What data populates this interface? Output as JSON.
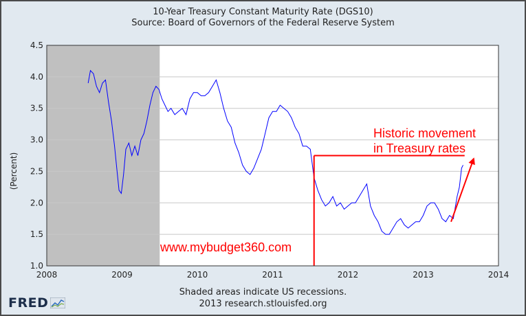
{
  "chart_data": {
    "type": "line",
    "title": "10-Year Treasury Constant Maturity Rate (DGS10)",
    "subtitle": "Source: Board of Governors of the Federal Reserve System",
    "xlabel": "",
    "ylabel": "(Percent)",
    "xlim": [
      2008,
      2014
    ],
    "ylim": [
      1.0,
      4.5
    ],
    "xticks": [
      "2008",
      "2009",
      "2010",
      "2011",
      "2012",
      "2013",
      "2014"
    ],
    "yticks": [
      "1.0",
      "1.5",
      "2.0",
      "2.5",
      "3.0",
      "3.5",
      "4.0",
      "4.5"
    ],
    "grid": true,
    "recession": {
      "start": 2008.0,
      "end": 2009.5
    },
    "series": [
      {
        "color": "#0000ff",
        "x": [
          2008.55,
          2008.58,
          2008.62,
          2008.66,
          2008.7,
          2008.74,
          2008.78,
          2008.82,
          2008.86,
          2008.9,
          2008.93,
          2008.96,
          2008.99,
          2009.02,
          2009.05,
          2009.09,
          2009.13,
          2009.17,
          2009.21,
          2009.25,
          2009.29,
          2009.33,
          2009.37,
          2009.41,
          2009.45,
          2009.49,
          2009.53,
          2009.57,
          2009.61,
          2009.65,
          2009.7,
          2009.75,
          2009.8,
          2009.85,
          2009.9,
          2009.95,
          2010.0,
          2010.05,
          2010.1,
          2010.15,
          2010.2,
          2010.25,
          2010.3,
          2010.35,
          2010.4,
          2010.45,
          2010.5,
          2010.55,
          2010.6,
          2010.65,
          2010.7,
          2010.75,
          2010.8,
          2010.85,
          2010.9,
          2010.95,
          2011.0,
          2011.05,
          2011.1,
          2011.15,
          2011.2,
          2011.25,
          2011.3,
          2011.35,
          2011.4,
          2011.45,
          2011.5,
          2011.55,
          2011.6,
          2011.65,
          2011.7,
          2011.75,
          2011.8,
          2011.85,
          2011.9,
          2011.95,
          2012.0,
          2012.05,
          2012.1,
          2012.15,
          2012.2,
          2012.25,
          2012.3,
          2012.35,
          2012.4,
          2012.45,
          2012.5,
          2012.55,
          2012.6,
          2012.65,
          2012.7,
          2012.75,
          2012.8,
          2012.85,
          2012.9,
          2012.95,
          2013.0,
          2013.05,
          2013.1,
          2013.15,
          2013.2,
          2013.25,
          2013.3,
          2013.35,
          2013.4,
          2013.45,
          2013.48,
          2013.51,
          2013.53
        ],
        "y": [
          3.9,
          4.1,
          4.05,
          3.85,
          3.75,
          3.9,
          3.95,
          3.6,
          3.3,
          2.9,
          2.55,
          2.2,
          2.15,
          2.45,
          2.85,
          2.95,
          2.75,
          2.9,
          2.75,
          3.0,
          3.1,
          3.3,
          3.55,
          3.75,
          3.85,
          3.8,
          3.65,
          3.55,
          3.45,
          3.5,
          3.4,
          3.45,
          3.5,
          3.4,
          3.65,
          3.75,
          3.75,
          3.7,
          3.7,
          3.75,
          3.85,
          3.95,
          3.75,
          3.5,
          3.3,
          3.2,
          2.95,
          2.8,
          2.6,
          2.5,
          2.45,
          2.55,
          2.7,
          2.85,
          3.1,
          3.35,
          3.45,
          3.45,
          3.55,
          3.5,
          3.45,
          3.35,
          3.2,
          3.1,
          2.9,
          2.9,
          2.85,
          2.4,
          2.2,
          2.05,
          1.95,
          2.0,
          2.1,
          1.95,
          2.0,
          1.9,
          1.95,
          2.0,
          2.0,
          2.1,
          2.2,
          2.3,
          1.95,
          1.8,
          1.7,
          1.55,
          1.5,
          1.5,
          1.6,
          1.7,
          1.75,
          1.65,
          1.6,
          1.65,
          1.7,
          1.7,
          1.8,
          1.95,
          2.0,
          2.0,
          1.9,
          1.75,
          1.7,
          1.8,
          1.75,
          2.1,
          2.25,
          2.55,
          2.6
        ]
      }
    ],
    "annotations": [
      {
        "text_line1": "Historic movement",
        "text_line2": "in Treasury rates",
        "color": "#ff0000"
      },
      {
        "text": "www.mybudget360.com",
        "color": "#ff0000"
      }
    ],
    "hline": {
      "x_start": 2011.55,
      "x_end": 2013.55,
      "y": 2.75,
      "color": "#ff0000"
    },
    "vline": {
      "x": 2011.55,
      "y_start": 1.0,
      "y_end": 2.75,
      "color": "#ff0000"
    },
    "arrow": {
      "x_start": 2013.37,
      "y_start": 1.7,
      "x_end": 2013.67,
      "y_end": 2.7,
      "color": "#ff0000"
    }
  },
  "footer": {
    "line1": "Shaded areas indicate US recessions.",
    "line2": "2013 research.stlouisfed.org"
  },
  "logo": {
    "text": "FRED"
  }
}
